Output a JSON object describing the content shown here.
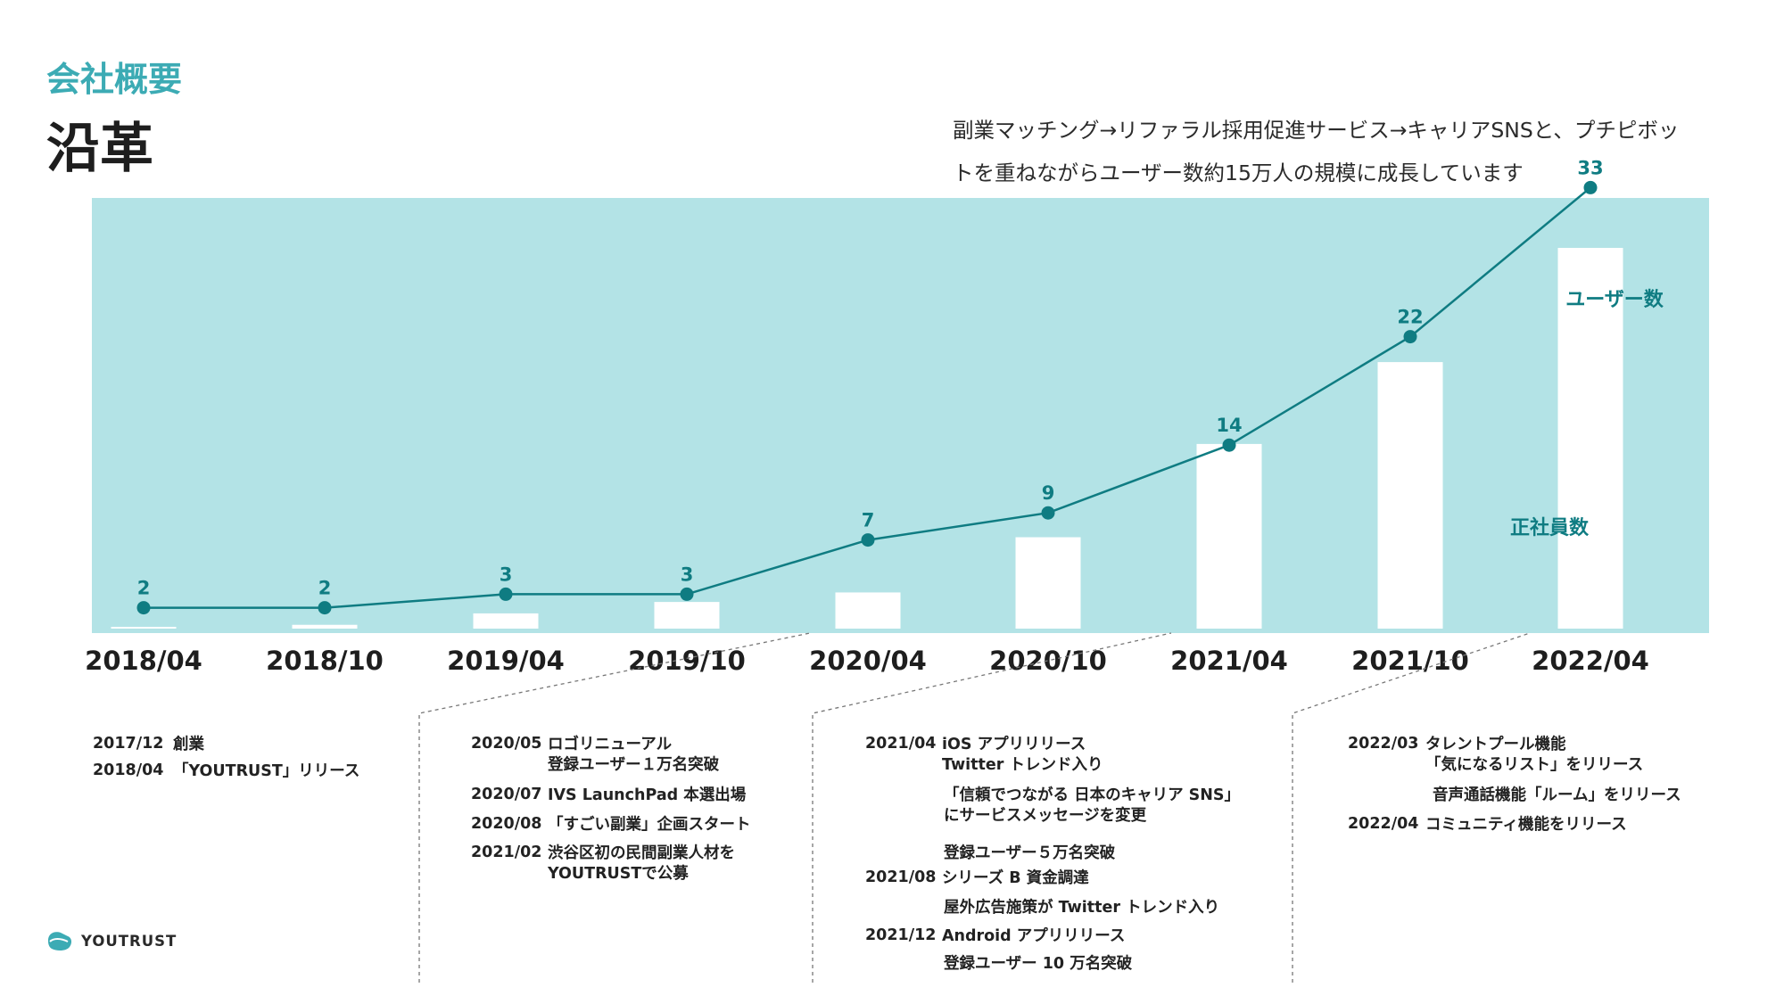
{
  "header": {
    "section_label": "会社概要",
    "title": "沿革",
    "summary_lines": [
      "副業マッチング→リファラル採用促進サービス→キャリアSNSと、プチピボッ",
      "トを重ねながらユーザー数約15万人の規模に成長しています"
    ]
  },
  "colors": {
    "accent": "#3cabb4",
    "chart_bg": "#b3e3e6",
    "bar": "#ffffff",
    "line": "#0f7c82",
    "point_label": "#0f7c82"
  },
  "chart_data": {
    "type": "bar+line",
    "categories": [
      "2018/04",
      "2018/10",
      "2019/04",
      "2019/10",
      "2020/04",
      "2020/10",
      "2021/04",
      "2021/10",
      "2022/04"
    ],
    "series": [
      {
        "name": "ユーザー数",
        "type": "bar",
        "values": [
          0.004,
          0.01,
          0.04,
          0.07,
          0.095,
          0.24,
          0.485,
          0.7,
          1.0
        ]
      },
      {
        "name": "正社員数",
        "type": "line",
        "values": [
          2,
          2,
          3,
          3,
          7,
          9,
          14,
          22,
          33
        ],
        "ylim": [
          0,
          41
        ]
      }
    ],
    "grid": false,
    "legend": "inline labels"
  },
  "timeline": [
    {
      "events": [
        {
          "date": "2017/12",
          "lines": [
            "創業"
          ]
        },
        {
          "date": "2018/04",
          "lines": [
            "「YOUTRUST」リリース"
          ]
        }
      ]
    },
    {
      "events": [
        {
          "date": "2020/05",
          "lines": [
            "ロゴリニューアル",
            "登録ユーザー１万名突破"
          ]
        },
        {
          "date": "2020/07",
          "lines": [
            "IVS LaunchPad 本選出場"
          ]
        },
        {
          "date": "2020/08",
          "lines": [
            "「すごい副業」企画スタート"
          ]
        },
        {
          "date": "2021/02",
          "lines": [
            "渋谷区初の民間副業人材を",
            "YOUTRUSTで公募"
          ]
        }
      ]
    },
    {
      "events": [
        {
          "date": "2021/04",
          "lines": [
            "iOS アプリリリース",
            "Twitter トレンド入り"
          ]
        },
        {
          "date": "",
          "lines": [
            "「信頼でつながる 日本のキャリア SNS」",
            "にサービスメッセージを変更"
          ]
        },
        {
          "date": "",
          "lines": [
            "登録ユーザー５万名突破"
          ]
        },
        {
          "date": "2021/08",
          "lines": [
            "シリーズ B 資金調達"
          ]
        },
        {
          "date": "",
          "lines": [
            "屋外広告施策が Twitter トレンド入り"
          ]
        },
        {
          "date": "2021/12",
          "lines": [
            "Android アプリリリース"
          ]
        },
        {
          "date": "",
          "lines": [
            "登録ユーザー 10 万名突破"
          ]
        }
      ]
    },
    {
      "events": [
        {
          "date": "2022/03",
          "lines": [
            "タレントプール機能",
            "「気になるリスト」をリリース"
          ]
        },
        {
          "date": "",
          "lines": [
            "音声通話機能「ルーム」をリリース"
          ]
        },
        {
          "date": "2022/04",
          "lines": [
            "コミュニティ機能をリリース"
          ]
        }
      ]
    }
  ],
  "logo": {
    "name": "YOUTRUST",
    "icon": "youtrust-logo-icon"
  }
}
